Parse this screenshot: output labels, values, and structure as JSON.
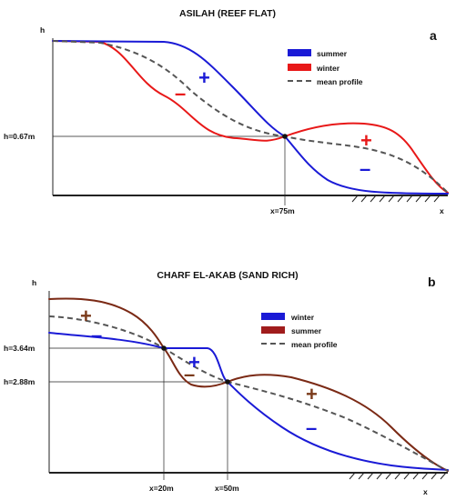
{
  "panels": [
    {
      "title": "ASILAH (REEF FLAT)",
      "letter": "a",
      "y_axis_label": "h",
      "x_axis_label": "x",
      "h_label": "h=0.67m",
      "x_label": "x=75m",
      "legend": [
        {
          "label": "summer",
          "color": "#1a1ad6",
          "style": "box"
        },
        {
          "label": "winter",
          "color": "#e81818",
          "style": "box"
        },
        {
          "label": "mean profile",
          "color": "#555555",
          "style": "dash"
        }
      ],
      "signs": [
        {
          "text": "+",
          "color": "#1a1ad6"
        },
        {
          "text": "–",
          "color": "#e81818"
        },
        {
          "text": "+",
          "color": "#e81818"
        },
        {
          "text": "–",
          "color": "#1a1ad6"
        }
      ]
    },
    {
      "title": "CHARF EL-AKAB (SAND RICH)",
      "letter": "b",
      "y_axis_label": "h",
      "x_axis_label": "x",
      "h_labels": [
        "h=3.64m",
        "h=2.88m"
      ],
      "x_labels": [
        "x=20m",
        "x=50m"
      ],
      "legend": [
        {
          "label": "winter",
          "color": "#1a1ad6",
          "style": "box"
        },
        {
          "label": "summer",
          "color": "#a01c1c",
          "style": "box"
        },
        {
          "label": "mean profile",
          "color": "#555555",
          "style": "dash"
        }
      ],
      "signs": [
        {
          "text": "+",
          "color": "#7a3a1a"
        },
        {
          "text": "–",
          "color": "#1a1ad6"
        },
        {
          "text": "+",
          "color": "#1a1ad6"
        },
        {
          "text": "–",
          "color": "#7a3a1a"
        },
        {
          "text": "+",
          "color": "#7a3a1a"
        },
        {
          "text": "–",
          "color": "#1a1ad6"
        }
      ]
    }
  ],
  "colors": {
    "blue": "#1a1ad6",
    "red": "#e81818",
    "brown": "#7a2a14",
    "mean": "#555555"
  }
}
